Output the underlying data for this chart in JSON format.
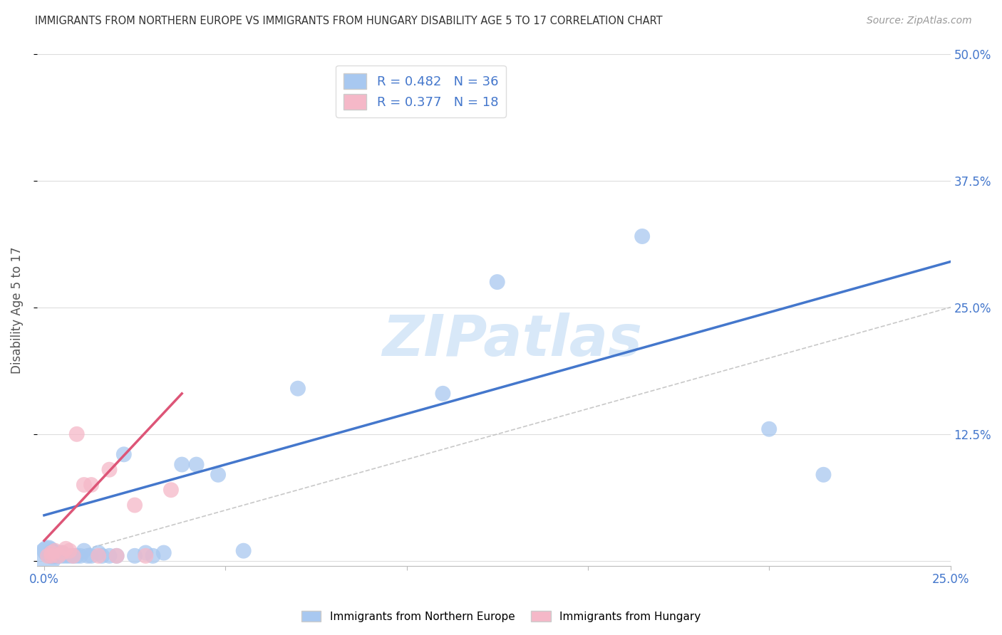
{
  "title": "IMMIGRANTS FROM NORTHERN EUROPE VS IMMIGRANTS FROM HUNGARY DISABILITY AGE 5 TO 17 CORRELATION CHART",
  "source": "Source: ZipAtlas.com",
  "ylabel": "Disability Age 5 to 17",
  "xlim": [
    0.0,
    0.25
  ],
  "ylim": [
    0.0,
    0.5
  ],
  "xtick_positions": [
    0.0,
    0.05,
    0.1,
    0.15,
    0.2,
    0.25
  ],
  "xtick_labels": [
    "0.0%",
    "",
    "",
    "",
    "",
    "25.0%"
  ],
  "ytick_positions_right": [
    0.0,
    0.125,
    0.25,
    0.375,
    0.5
  ],
  "ytick_labels_right": [
    "",
    "12.5%",
    "25.0%",
    "37.5%",
    "50.0%"
  ],
  "blue_R": 0.482,
  "blue_N": 36,
  "pink_R": 0.377,
  "pink_N": 18,
  "blue_color": "#A8C8F0",
  "pink_color": "#F5B8C8",
  "blue_line_color": "#4477CC",
  "pink_line_color": "#DD5577",
  "diagonal_color": "#BBBBBB",
  "watermark_text": "ZIPatlas",
  "watermark_color": "#D8E8F8",
  "blue_line_x": [
    0.0,
    0.25
  ],
  "blue_line_y": [
    0.045,
    0.295
  ],
  "pink_line_x": [
    0.0,
    0.038
  ],
  "pink_line_y": [
    0.02,
    0.165
  ],
  "blue_scatter_x": [
    0.001,
    0.001,
    0.002,
    0.002,
    0.003,
    0.003,
    0.004,
    0.005,
    0.005,
    0.006,
    0.007,
    0.008,
    0.009,
    0.01,
    0.011,
    0.012,
    0.013,
    0.015,
    0.016,
    0.018,
    0.02,
    0.022,
    0.025,
    0.028,
    0.03,
    0.033,
    0.038,
    0.042,
    0.048,
    0.055,
    0.07,
    0.11,
    0.125,
    0.165,
    0.2,
    0.215
  ],
  "blue_scatter_y": [
    0.005,
    0.01,
    0.005,
    0.008,
    0.005,
    0.008,
    0.005,
    0.005,
    0.008,
    0.005,
    0.005,
    0.005,
    0.005,
    0.005,
    0.01,
    0.005,
    0.005,
    0.008,
    0.005,
    0.005,
    0.005,
    0.105,
    0.005,
    0.008,
    0.005,
    0.008,
    0.095,
    0.095,
    0.085,
    0.01,
    0.17,
    0.165,
    0.275,
    0.32,
    0.13,
    0.085
  ],
  "blue_scatter_sizes": [
    900,
    500,
    300,
    300,
    300,
    300,
    250,
    250,
    250,
    250,
    250,
    250,
    250,
    250,
    250,
    250,
    250,
    250,
    250,
    250,
    250,
    250,
    250,
    250,
    250,
    250,
    250,
    250,
    250,
    250,
    250,
    250,
    250,
    250,
    250,
    250
  ],
  "pink_scatter_x": [
    0.001,
    0.002,
    0.002,
    0.003,
    0.004,
    0.005,
    0.006,
    0.007,
    0.008,
    0.009,
    0.011,
    0.013,
    0.015,
    0.018,
    0.02,
    0.025,
    0.028,
    0.035
  ],
  "pink_scatter_y": [
    0.005,
    0.005,
    0.008,
    0.01,
    0.005,
    0.008,
    0.012,
    0.01,
    0.005,
    0.125,
    0.075,
    0.075,
    0.005,
    0.09,
    0.005,
    0.055,
    0.005,
    0.07
  ],
  "pink_scatter_sizes": [
    250,
    250,
    250,
    250,
    250,
    250,
    250,
    250,
    250,
    250,
    250,
    250,
    250,
    250,
    250,
    250,
    250,
    250
  ]
}
